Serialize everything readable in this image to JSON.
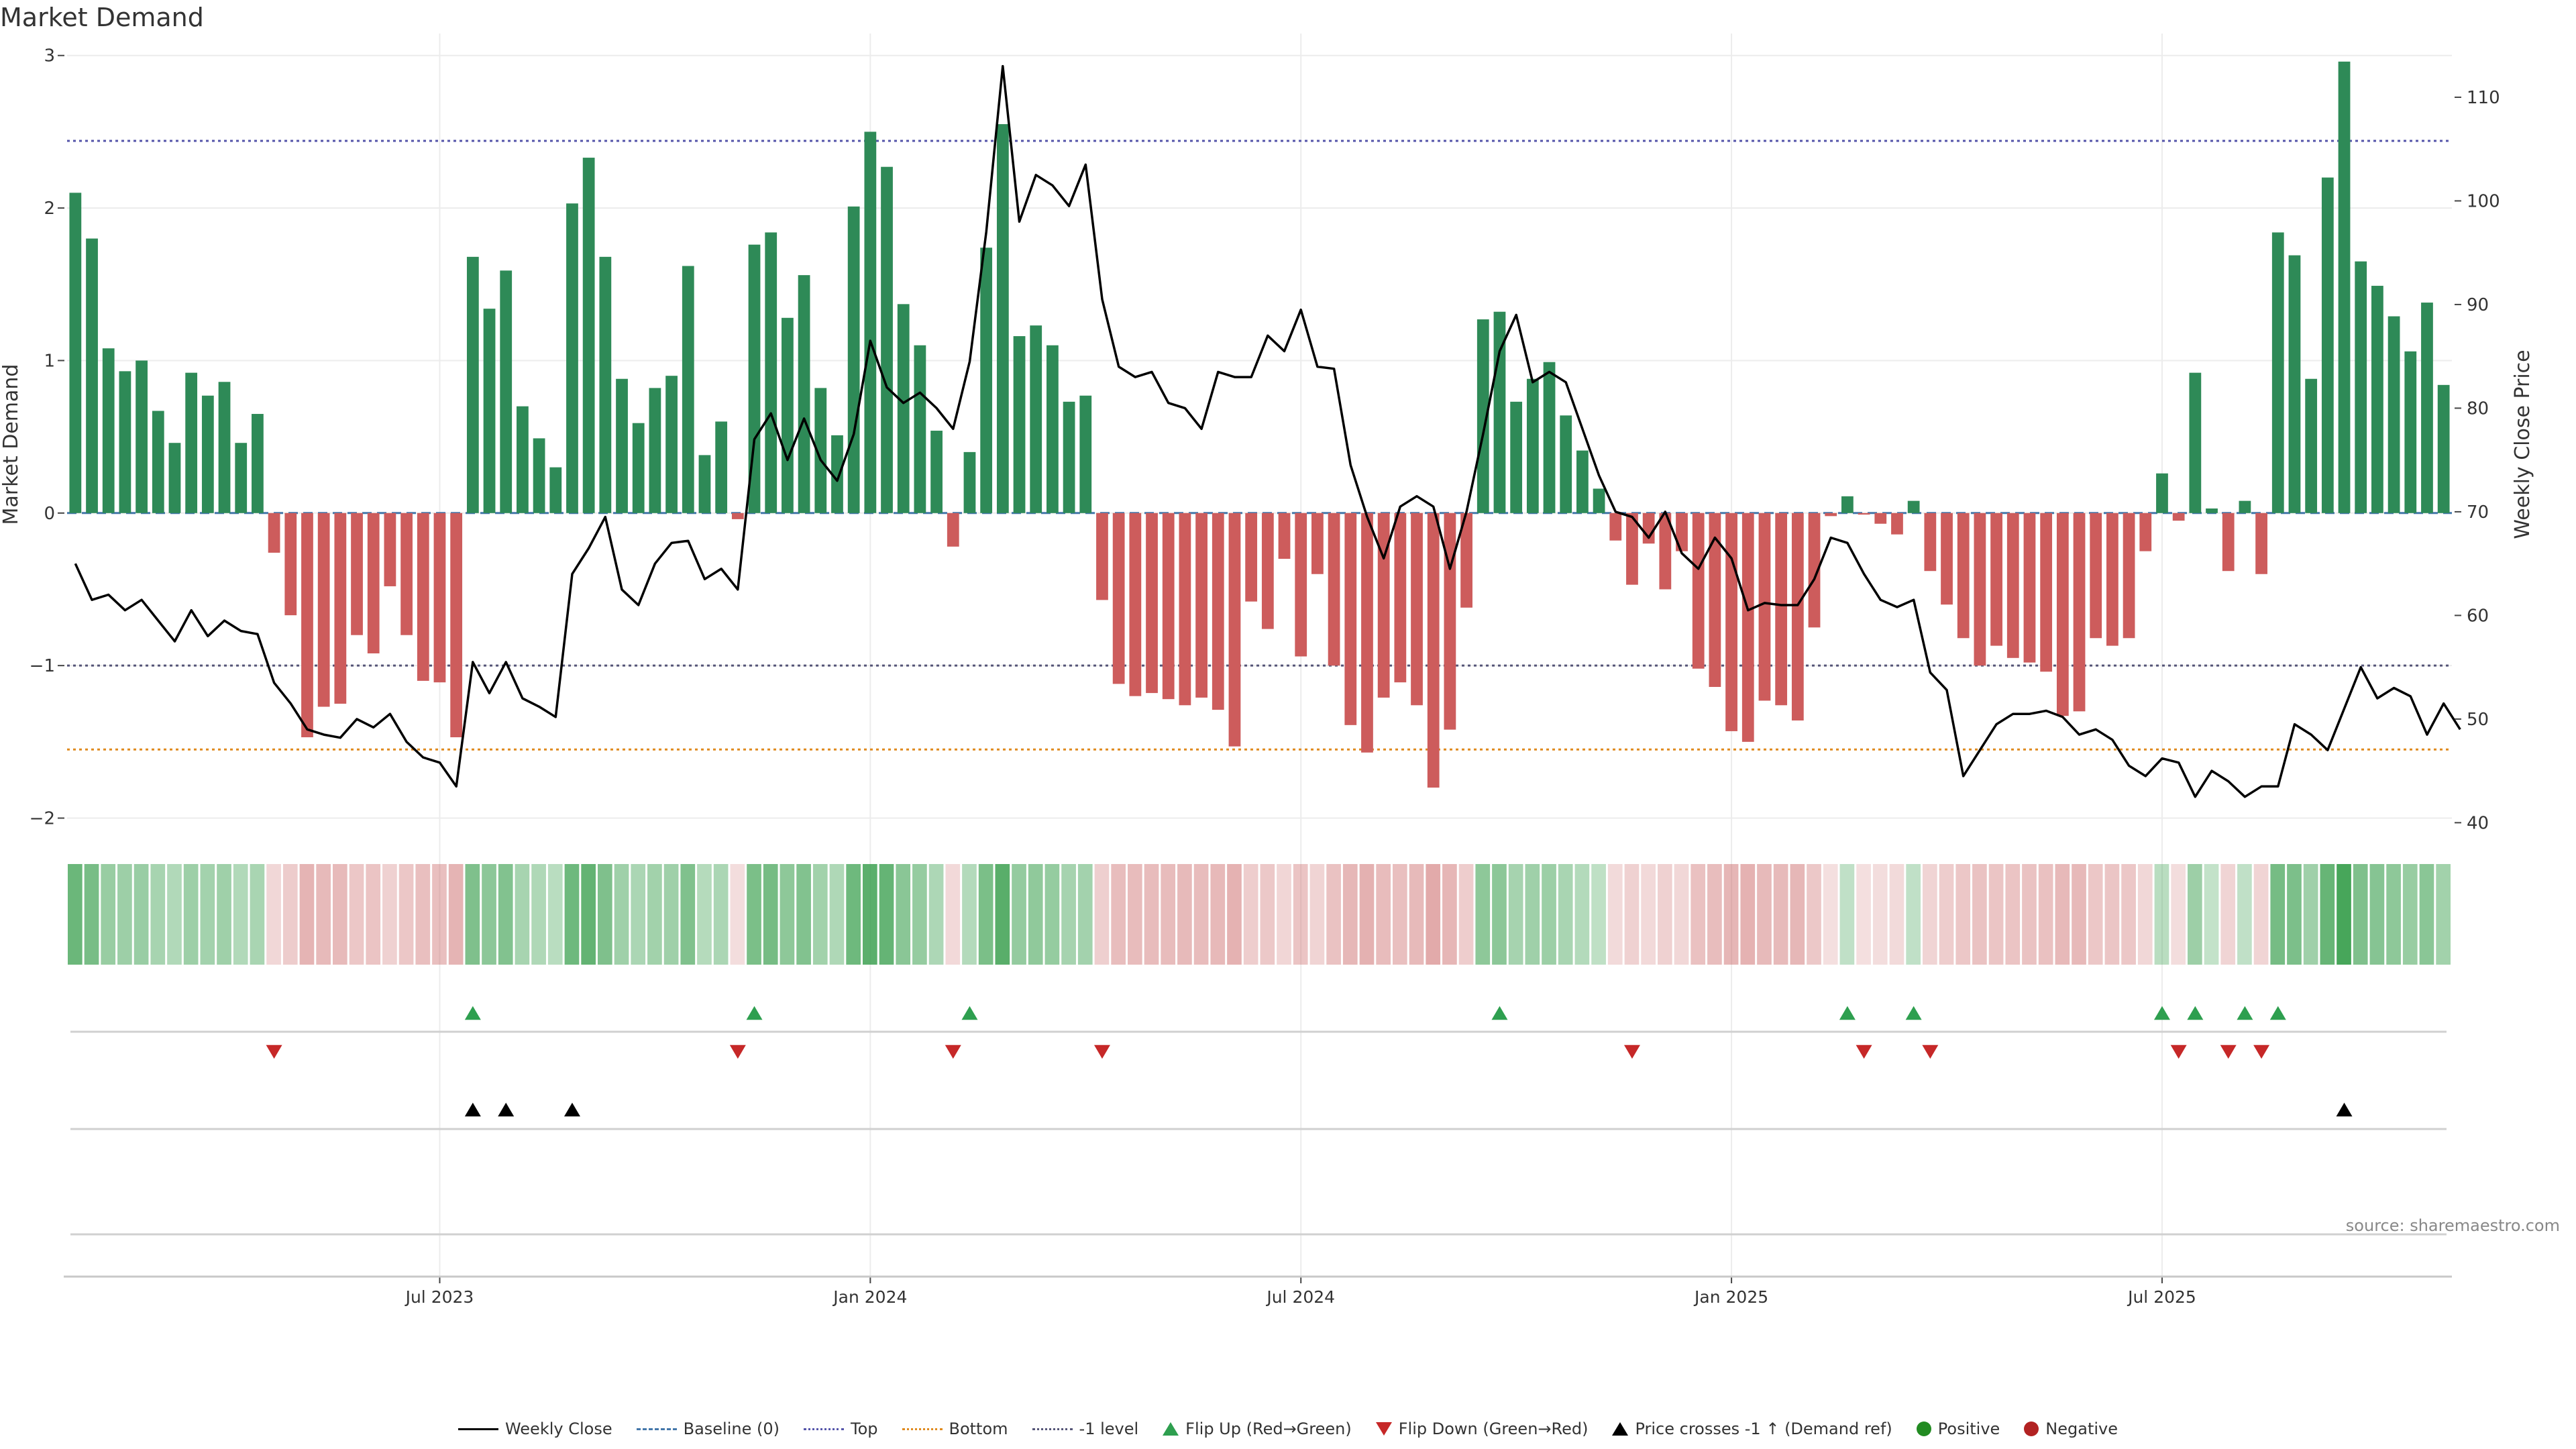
{
  "title": "Market Demand",
  "source": "source: sharemaestro.com",
  "colors": {
    "pos_bar": "#2e8a57",
    "neg_bar": "#cd5c5c",
    "price_line": "#000000",
    "baseline": "#4477aa",
    "top_line": "#5555aa",
    "bottom_line": "#e08a1e",
    "minus1_line": "#555577",
    "flip_up": "#2e9f4f",
    "flip_down": "#c62828",
    "cross_marker": "#000000",
    "positive_dot": "#228b22",
    "negative_dot": "#b22222"
  },
  "chart_data": {
    "type": "bar",
    "title": "Market Demand",
    "ylabel": "Market Demand",
    "y2label": "Weekly Close Price",
    "ylim": [
      -2.2,
      3.1
    ],
    "y2lim": [
      37.5,
      115.5
    ],
    "yticks": [
      "3",
      "2",
      "1",
      "0",
      "−1",
      "−2"
    ],
    "y2ticks": [
      "110",
      "100",
      "90",
      "80",
      "70",
      "60",
      "50",
      "40"
    ],
    "xticks": [
      {
        "label": "Jul 2023",
        "index": 22
      },
      {
        "label": "Jan 2024",
        "index": 48
      },
      {
        "label": "Jul 2024",
        "index": 74
      },
      {
        "label": "Jan 2025",
        "index": 100
      },
      {
        "label": "Jul 2025",
        "index": 126
      }
    ],
    "reference_lines": {
      "baseline": 0,
      "top": 2.44,
      "bottom": -1.55,
      "minus1": -1.0
    },
    "demand": [
      2.1,
      1.8,
      1.08,
      0.93,
      1.0,
      0.67,
      0.46,
      0.92,
      0.77,
      0.86,
      0.46,
      0.65,
      -0.26,
      -0.67,
      -1.47,
      -1.27,
      -1.25,
      -0.8,
      -0.92,
      -0.48,
      -0.8,
      -1.1,
      -1.11,
      -1.47,
      1.68,
      1.34,
      1.59,
      0.7,
      0.49,
      0.3,
      2.03,
      2.33,
      1.68,
      0.88,
      0.59,
      0.82,
      0.9,
      1.62,
      0.38,
      0.6,
      -0.04,
      1.76,
      1.84,
      1.28,
      1.56,
      0.82,
      0.51,
      2.01,
      2.5,
      2.27,
      1.37,
      1.1,
      0.54,
      -0.22,
      0.4,
      1.74,
      2.55,
      1.16,
      1.23,
      1.1,
      0.73,
      0.77,
      -0.57,
      -1.12,
      -1.2,
      -1.18,
      -1.22,
      -1.26,
      -1.21,
      -1.29,
      -1.53,
      -0.58,
      -0.76,
      -0.3,
      -0.94,
      -0.4,
      -1.0,
      -1.39,
      -1.57,
      -1.21,
      -1.11,
      -1.26,
      -1.8,
      -1.42,
      -0.62,
      1.27,
      1.32,
      0.73,
      0.88,
      0.99,
      0.64,
      0.41,
      0.16,
      -0.18,
      -0.47,
      -0.2,
      -0.5,
      -0.25,
      -1.02,
      -1.14,
      -1.43,
      -1.5,
      -1.23,
      -1.26,
      -1.36,
      -0.75,
      -0.02,
      0.11,
      -0.01,
      -0.07,
      -0.14,
      0.08,
      -0.38,
      -0.6,
      -0.82,
      -1.0,
      -0.87,
      -0.95,
      -0.98,
      -1.04,
      -1.33,
      -1.3,
      -0.82,
      -0.87,
      -0.82,
      -0.25,
      0.26,
      -0.05,
      0.92,
      0.03,
      -0.38,
      0.08,
      -0.4,
      1.84,
      1.69,
      0.88,
      2.2,
      2.96,
      1.65,
      1.49,
      1.29,
      1.06,
      1.38,
      0.84
    ],
    "weekly_close": [
      65,
      61.5,
      62,
      60.5,
      61.5,
      59.5,
      57.5,
      60.5,
      58,
      59.5,
      58.5,
      58.2,
      53.5,
      51.5,
      49,
      48.5,
      48.2,
      50,
      49.2,
      50.5,
      47.8,
      46.3,
      45.8,
      43.5,
      55.5,
      52.5,
      55.5,
      52,
      51.2,
      50.2,
      64,
      66.5,
      69.5,
      62.5,
      61,
      65,
      67,
      67.2,
      63.5,
      64.5,
      62.5,
      77,
      79.5,
      75,
      79,
      75,
      73,
      77.5,
      86.5,
      82,
      80.5,
      81.5,
      80,
      78,
      84.5,
      97,
      113,
      98,
      102.5,
      101.5,
      99.5,
      103.5,
      90.5,
      84,
      83,
      83.5,
      80.5,
      80,
      78,
      83.5,
      83,
      83,
      87,
      85.5,
      89.5,
      84,
      83.8,
      74.5,
      69.5,
      65.5,
      70.5,
      71.5,
      70.5,
      64.5,
      70,
      77.5,
      85.5,
      89,
      82.5,
      83.5,
      82.5,
      78,
      73.5,
      70,
      69.5,
      67.5,
      70,
      66,
      64.5,
      67.5,
      65.5,
      60.5,
      61.2,
      61,
      61,
      63.5,
      67.5,
      67,
      64,
      61.5,
      60.8,
      61.5,
      54.5,
      52.8,
      44.5,
      47,
      49.5,
      50.5,
      50.5,
      50.8,
      50.2,
      48.5,
      49,
      48,
      45.5,
      44.5,
      46.2,
      45.8,
      42.5,
      45,
      44,
      42.5,
      43.5,
      43.5,
      49.5,
      48.5,
      47,
      51,
      55,
      52,
      53,
      52.2,
      48.5,
      51.5,
      49
    ],
    "flip_up_indices": [
      24,
      41,
      54,
      86,
      107,
      111,
      126,
      128,
      131,
      133
    ],
    "flip_down_indices": [
      12,
      40,
      53,
      62,
      94,
      108,
      112,
      127,
      130,
      132
    ],
    "price_cross_indices": [
      24,
      26,
      30,
      137
    ]
  },
  "legend": [
    {
      "label": "Weekly Close",
      "icon": "line-icon"
    },
    {
      "label": "Baseline (0)",
      "icon": "dashed-line-icon"
    },
    {
      "label": "Top",
      "icon": "dotted-line-icon"
    },
    {
      "label": "Bottom",
      "icon": "dotted-line-icon"
    },
    {
      "label": "-1 level",
      "icon": "dotted-line-icon"
    },
    {
      "label": "Flip Up (Red→Green)",
      "icon": "triangle-up-icon"
    },
    {
      "label": "Flip Down (Green→Red)",
      "icon": "triangle-down-icon"
    },
    {
      "label": "Price crosses -1 ↑ (Demand ref)",
      "icon": "triangle-up-icon"
    },
    {
      "label": "Positive",
      "icon": "circle-icon"
    },
    {
      "label": "Negative",
      "icon": "circle-icon"
    }
  ]
}
